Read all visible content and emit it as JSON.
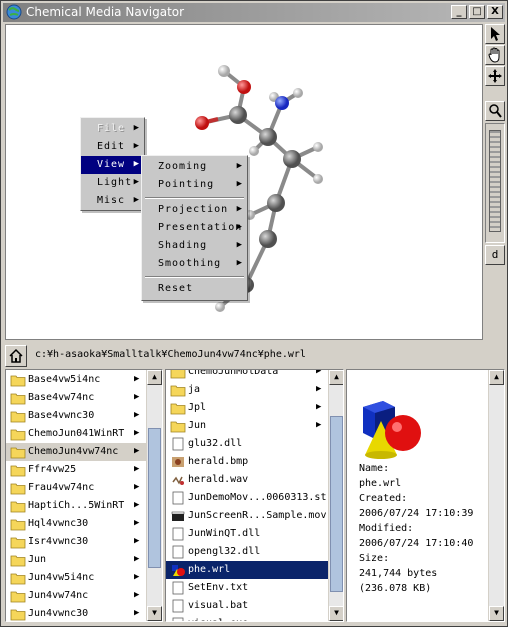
{
  "window": {
    "title": "Chemical Media Navigator",
    "controls": {
      "minimize": "_",
      "maximize": "□",
      "close": "X"
    }
  },
  "tools": [
    "arrow-pointer-icon",
    "hand-icon",
    "move-icon",
    "magnifier-icon"
  ],
  "zoom_button_label": "d",
  "context_menu": {
    "items": [
      {
        "label": "File",
        "disabled": true,
        "arrow": "▶"
      },
      {
        "label": "Edit",
        "disabled": false,
        "arrow": "▶"
      },
      {
        "label": "View",
        "disabled": false,
        "arrow": "▶",
        "active": true
      },
      {
        "label": "Light",
        "disabled": false,
        "arrow": "▶"
      },
      {
        "label": "Misc",
        "disabled": false,
        "arrow": "▶"
      }
    ]
  },
  "view_submenu": {
    "items": [
      {
        "label": "Zooming",
        "arrow": "▶"
      },
      {
        "label": "Pointing",
        "arrow": "▶"
      },
      {
        "label": "Projection",
        "arrow": "▶"
      },
      {
        "label": "Presentation",
        "arrow": "▶"
      },
      {
        "label": "Shading",
        "arrow": "▶"
      },
      {
        "label": "Smoothing",
        "arrow": "▶"
      },
      {
        "label": "Reset",
        "arrow": ""
      }
    ]
  },
  "path": "c:¥h-asaoka¥Smalltalk¥ChemoJun4vw74nc¥phe.wrl",
  "folders": [
    {
      "name": "Base4vw5i4nc",
      "arrow": "▶"
    },
    {
      "name": "Base4vw74nc",
      "arrow": "▶"
    },
    {
      "name": "Base4vwnc30",
      "arrow": "▶"
    },
    {
      "name": "ChemoJun041WinRT",
      "arrow": "▶"
    },
    {
      "name": "ChemoJun4vw74nc",
      "arrow": "▶",
      "selected": true
    },
    {
      "name": "Ffr4vw25",
      "arrow": "▶"
    },
    {
      "name": "Frau4vw74nc",
      "arrow": "▶"
    },
    {
      "name": "HaptiCh...5WinRT",
      "arrow": "▶"
    },
    {
      "name": "Hql4vwnc30",
      "arrow": "▶"
    },
    {
      "name": "Isr4vwnc30",
      "arrow": "▶"
    },
    {
      "name": "Jun",
      "arrow": "▶"
    },
    {
      "name": "Jun4vw5i4nc",
      "arrow": "▶"
    },
    {
      "name": "Jun4vw74nc",
      "arrow": "▶"
    },
    {
      "name": "Jun4vwnc30",
      "arrow": "▶"
    }
  ],
  "files": [
    {
      "name": "ChemoJunMolData",
      "type": "folder",
      "arrow": "▶"
    },
    {
      "name": "ja",
      "type": "folder",
      "arrow": "▶"
    },
    {
      "name": "Jpl",
      "type": "folder",
      "arrow": "▶"
    },
    {
      "name": "Jun",
      "type": "folder",
      "arrow": "▶"
    },
    {
      "name": "glu32.dll",
      "type": "file",
      "arrow": ""
    },
    {
      "name": "herald.bmp",
      "type": "image",
      "arrow": ""
    },
    {
      "name": "herald.wav",
      "type": "audio",
      "arrow": ""
    },
    {
      "name": "JunDemoMov...0060313.st",
      "type": "file",
      "arrow": ""
    },
    {
      "name": "JunScreenR...Sample.mov",
      "type": "movie",
      "arrow": ""
    },
    {
      "name": "JunWinQT.dll",
      "type": "file",
      "arrow": ""
    },
    {
      "name": "opengl32.dll",
      "type": "file",
      "arrow": ""
    },
    {
      "name": "phe.wrl",
      "type": "vrml",
      "arrow": "",
      "highlight": true
    },
    {
      "name": "SetEnv.txt",
      "type": "file",
      "arrow": ""
    },
    {
      "name": "visual.bat",
      "type": "file",
      "arrow": ""
    },
    {
      "name": "visual.exe",
      "type": "file",
      "arrow": ""
    }
  ],
  "info": {
    "name_label": "Name:",
    "name_value": "phe.wrl",
    "created_label": "Created:",
    "created_value": "2006/07/24 17:10:39",
    "modified_label": "Modified:",
    "modified_value": "2006/07/24 17:10:40",
    "size_label": "Size:",
    "size_value": "241,744 bytes",
    "size_kb": "(236.078 KB)"
  },
  "scroll_arrows": {
    "up": "▲",
    "down": "▼"
  }
}
